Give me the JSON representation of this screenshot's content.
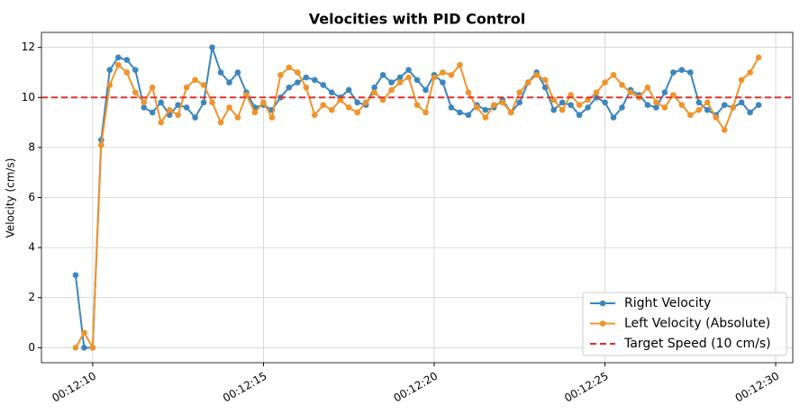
{
  "chart_data": {
    "type": "line",
    "title": "Velocities with PID Control",
    "y_label": "Velocity (cm/s)",
    "x": [
      729.5,
      729.75,
      730,
      730.25,
      730.5,
      730.75,
      731,
      731.25,
      731.5,
      731.75,
      732,
      732.25,
      732.5,
      732.75,
      733,
      733.25,
      733.5,
      733.75,
      734,
      734.25,
      734.5,
      734.75,
      735,
      735.25,
      735.5,
      735.75,
      736,
      736.25,
      736.5,
      736.75,
      737,
      737.25,
      737.5,
      737.75,
      738,
      738.25,
      738.5,
      738.75,
      739,
      739.25,
      739.5,
      739.75,
      740,
      740.25,
      740.5,
      740.75,
      741,
      741.25,
      741.5,
      741.75,
      742,
      742.25,
      742.5,
      742.75,
      743,
      743.25,
      743.5,
      743.75,
      744,
      744.25,
      744.5,
      744.75,
      745,
      745.25,
      745.5,
      745.75,
      746,
      746.25,
      746.5,
      746.75,
      747,
      747.25,
      747.5,
      747.75,
      748,
      748.25,
      748.5,
      748.75,
      749,
      749.25,
      749.5
    ],
    "series": [
      {
        "name": "Right Velocity",
        "color": "#3b86bd",
        "values": [
          2.9,
          0,
          0,
          8.3,
          11.1,
          11.6,
          11.5,
          11.1,
          9.6,
          9.4,
          9.8,
          9.3,
          9.7,
          9.6,
          9.2,
          9.8,
          12.0,
          11.0,
          10.6,
          11.0,
          10.2,
          9.6,
          9.7,
          9.5,
          10.0,
          10.4,
          10.6,
          10.8,
          10.7,
          10.5,
          10.2,
          10.0,
          10.3,
          9.8,
          9.7,
          10.4,
          10.9,
          10.6,
          10.8,
          11.1,
          10.7,
          10.3,
          10.9,
          10.6,
          9.6,
          9.4,
          9.3,
          9.7,
          9.5,
          9.6,
          9.9,
          9.4,
          9.8,
          10.6,
          11.0,
          10.4,
          9.5,
          9.8,
          9.7,
          9.3,
          9.6,
          10.0,
          9.8,
          9.2,
          9.6,
          10.3,
          10.1,
          9.7,
          9.6,
          10.2,
          11.0,
          11.1,
          11.0,
          9.8,
          9.5,
          9.3,
          9.7,
          9.6,
          9.8,
          9.4,
          9.7
        ]
      },
      {
        "name": "Left Velocity (Absolute)",
        "color": "#f0932b",
        "values": [
          0,
          0.6,
          0,
          8.1,
          10.5,
          11.3,
          11.0,
          10.2,
          9.8,
          10.4,
          9.0,
          9.5,
          9.3,
          10.4,
          10.7,
          10.5,
          9.8,
          9.0,
          9.6,
          9.2,
          10.1,
          9.4,
          9.8,
          9.2,
          10.9,
          11.2,
          11.0,
          10.4,
          9.3,
          9.7,
          9.5,
          9.9,
          9.6,
          9.4,
          9.8,
          10.2,
          9.9,
          10.3,
          10.6,
          10.8,
          9.7,
          9.4,
          10.8,
          11.0,
          10.9,
          11.3,
          10.2,
          9.6,
          9.2,
          9.7,
          9.8,
          9.4,
          10.2,
          10.6,
          10.9,
          10.7,
          9.9,
          9.5,
          10.1,
          9.7,
          9.9,
          10.2,
          10.6,
          10.9,
          10.5,
          10.2,
          10.0,
          10.4,
          9.8,
          9.6,
          10.1,
          9.7,
          9.3,
          9.5,
          9.8,
          9.2,
          8.7,
          9.6,
          10.7,
          11.0,
          11.6
        ]
      }
    ],
    "target": {
      "name": "Target Speed (10 cm/s)",
      "value": 10,
      "color": "#e0302a"
    },
    "xlim": [
      728.5,
      750.5
    ],
    "xticks": [
      {
        "value": 730,
        "label": "00:12:10"
      },
      {
        "value": 735,
        "label": "00:12:15"
      },
      {
        "value": 740,
        "label": "00:12:20"
      },
      {
        "value": 745,
        "label": "00:12:25"
      },
      {
        "value": 750,
        "label": "00:12:30"
      }
    ],
    "ylim": [
      -0.6,
      12.6
    ],
    "yticks": [
      0,
      2,
      4,
      6,
      8,
      10,
      12
    ],
    "grid": true,
    "legend": "lower right"
  }
}
